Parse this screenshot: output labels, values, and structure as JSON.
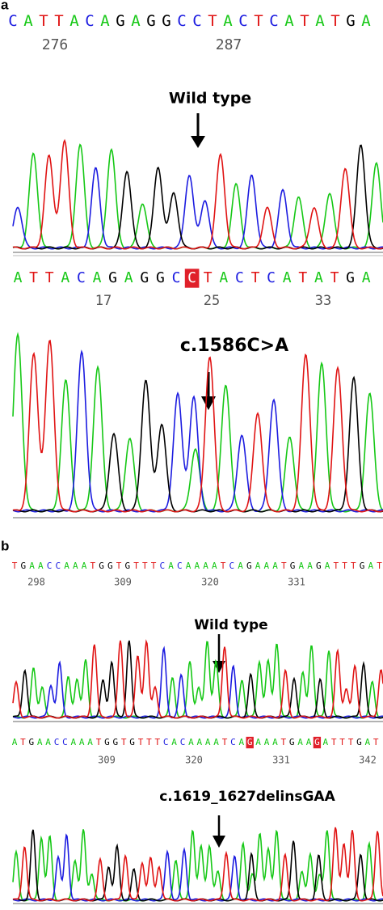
{
  "panel_a": {
    "label": "a",
    "reference": {
      "sequence": "CATTACAGAGGCCTACTCATATGA",
      "positions": [
        276,
        287
      ]
    },
    "wild_type_label": "Wild type",
    "mutant": {
      "sequence_segments": [
        "ATTACAGAGGC",
        "C",
        "TACTCATATGA"
      ],
      "positions": [
        17,
        25,
        33
      ]
    },
    "mutation_label": "c.1586C>A"
  },
  "panel_b": {
    "label": "b",
    "reference": {
      "sequence": "TGAACCAAATGGTGTTTCACAAAATCAGAAATGAAGATTTGAT",
      "positions": [
        298,
        309,
        320,
        331
      ]
    },
    "wild_type_label": "Wild type",
    "mutant": {
      "sequence_segments": [
        "ATGAACCAAATGGTGTTTCACAAAATCA",
        "G",
        "AAATGAA",
        "G",
        "ATTTGAT"
      ],
      "positions": [
        309,
        320,
        331,
        342
      ]
    },
    "mutation_label": "c.1619_1627delinsGAA"
  }
}
